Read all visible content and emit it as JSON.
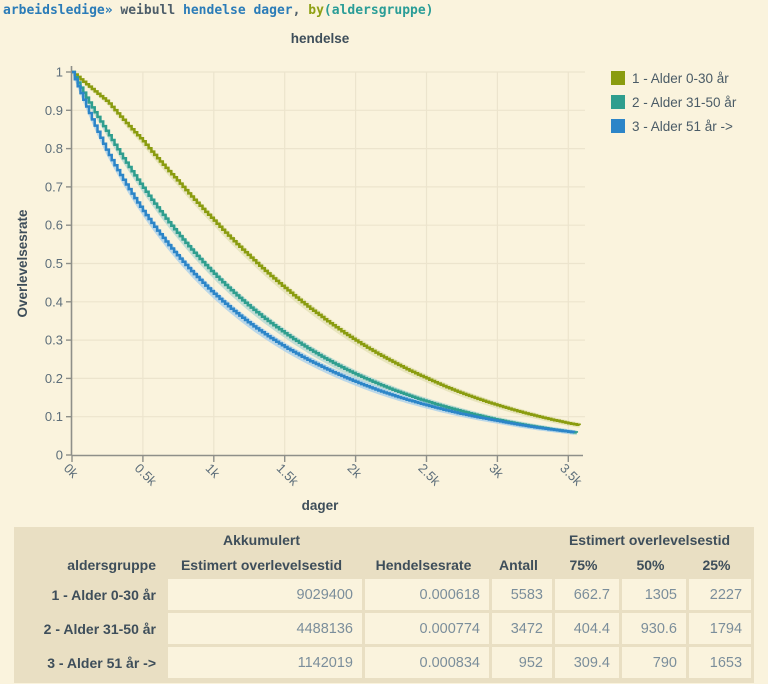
{
  "command": {
    "tokens": [
      {
        "text": "arbeidsledige»",
        "color": "#2b7cb8"
      },
      {
        "text": " weibull ",
        "color": "#4d5d69"
      },
      {
        "text": "hendelse dager",
        "color": "#2b7cb8"
      },
      {
        "text": ", ",
        "color": "#4d5d69"
      },
      {
        "text": "by",
        "color": "#8fa014"
      },
      {
        "text": "(aldersgruppe)",
        "color": "#2a9d97"
      }
    ]
  },
  "chart_data": {
    "type": "line",
    "subtype": "step-survival-curves",
    "title": "hendelse",
    "xlabel": "dager",
    "ylabel": "Overlevelsesrate",
    "xlim": [
      0,
      3600
    ],
    "ylim": [
      0,
      1
    ],
    "grid": true,
    "legend_position": "top-right",
    "step_days": 20,
    "band_k": 0.026,
    "x_ticks": [
      {
        "value": 0,
        "label": "0k"
      },
      {
        "value": 500,
        "label": "0.5k"
      },
      {
        "value": 1000,
        "label": "1k"
      },
      {
        "value": 1500,
        "label": "1.5k"
      },
      {
        "value": 2000,
        "label": "2k"
      },
      {
        "value": 2500,
        "label": "2.5k"
      },
      {
        "value": 3000,
        "label": "3k"
      },
      {
        "value": 3500,
        "label": "3.5k"
      }
    ],
    "y_ticks": [
      {
        "value": 0,
        "label": "0"
      },
      {
        "value": 0.1,
        "label": "0.1"
      },
      {
        "value": 0.2,
        "label": "0.2"
      },
      {
        "value": 0.3,
        "label": "0.3"
      },
      {
        "value": 0.4,
        "label": "0.4"
      },
      {
        "value": 0.5,
        "label": "0.5"
      },
      {
        "value": 0.6,
        "label": "0.6"
      },
      {
        "value": 0.7,
        "label": "0.7"
      },
      {
        "value": 0.8,
        "label": "0.8"
      },
      {
        "value": 0.9,
        "label": "0.9"
      },
      {
        "value": 1,
        "label": "1"
      }
    ],
    "series": [
      {
        "name": "1 - Alder 0-30 år",
        "color": "#8a9c0f",
        "band_color": "#d9d9a2",
        "band_opacity": 0.55,
        "x": [
          0,
          250,
          500,
          750,
          1000,
          1250,
          1500,
          1750,
          2000,
          2250,
          2500,
          2750,
          3000,
          3250,
          3500,
          3580
        ],
        "y": [
          1,
          0.922,
          0.819,
          0.713,
          0.612,
          0.519,
          0.436,
          0.363,
          0.299,
          0.245,
          0.2,
          0.161,
          0.13,
          0.104,
          0.083,
          0.078
        ]
      },
      {
        "name": "2 - Alder 31-50 år",
        "color": "#2f9e8e",
        "band_color": "#b7d8d2",
        "band_opacity": 0.85,
        "x": [
          0,
          250,
          500,
          750,
          1000,
          1250,
          1500,
          1750,
          2000,
          2250,
          2500,
          2750,
          3000,
          3250,
          3500,
          3560
        ],
        "y": [
          1,
          0.841,
          0.698,
          0.576,
          0.473,
          0.388,
          0.318,
          0.259,
          0.211,
          0.172,
          0.14,
          0.114,
          0.092,
          0.075,
          0.061,
          0.058
        ]
      },
      {
        "name": "3 - Alder 51 år ->",
        "color": "#2c85c8",
        "band_color": "#aed1ea",
        "band_opacity": 0.85,
        "x": [
          0,
          250,
          500,
          750,
          1000,
          1250,
          1500,
          1750,
          2000,
          2250,
          2500,
          2750,
          3000,
          3250,
          3500,
          3540
        ],
        "y": [
          1,
          0.79,
          0.637,
          0.517,
          0.421,
          0.344,
          0.282,
          0.232,
          0.191,
          0.157,
          0.13,
          0.107,
          0.089,
          0.073,
          0.061,
          0.059
        ]
      }
    ]
  },
  "table": {
    "group_header": {
      "akkumulert": "Akkumulert",
      "estimert": "Estimert overlevelsestid"
    },
    "columns": [
      "aldersgruppe",
      "Estimert overlevelsestid",
      "Hendelsesrate",
      "Antall",
      "75%",
      "50%",
      "25%"
    ],
    "rows": [
      {
        "label": "1 - Alder 0-30 år",
        "values": [
          "9029400",
          "0.000618",
          "5583",
          "662.7",
          "1305",
          "2227"
        ]
      },
      {
        "label": "2 - Alder 31-50 år",
        "values": [
          "4488136",
          "0.000774",
          "3472",
          "404.4",
          "930.6",
          "1794"
        ]
      },
      {
        "label": "3 - Alder 51 år ->",
        "values": [
          "1142019",
          "0.000834",
          "952",
          "309.4",
          "790",
          "1653"
        ]
      }
    ]
  }
}
